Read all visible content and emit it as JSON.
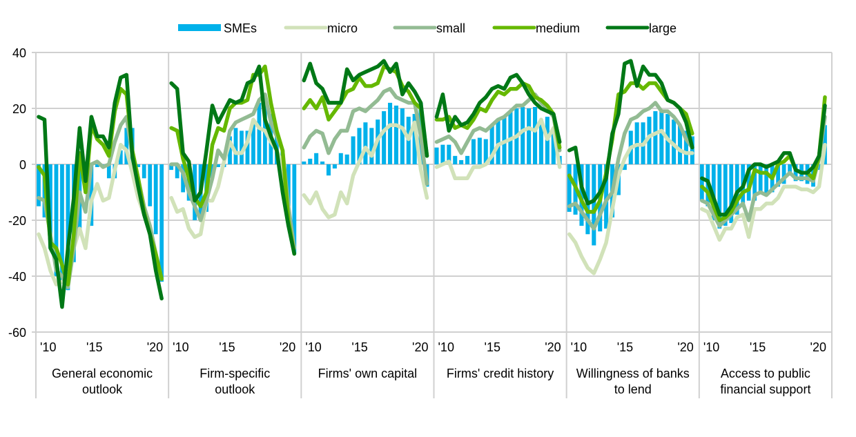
{
  "chart_data": {
    "type": "bar+line",
    "title": "",
    "xlabel": "",
    "ylabel": "",
    "ylim": [
      -60,
      40
    ],
    "yticks": [
      40,
      20,
      0,
      -20,
      -40,
      -60
    ],
    "grid": true,
    "legend_position": "top-center",
    "legend": [
      {
        "name": "SMEs",
        "kind": "bar",
        "color": "#00b1ea"
      },
      {
        "name": "micro",
        "kind": "line",
        "color": "#d1e2b9"
      },
      {
        "name": "small",
        "kind": "line",
        "color": "#93bb93"
      },
      {
        "name": "medium",
        "kind": "line",
        "color": "#65b800"
      },
      {
        "name": "large",
        "kind": "line",
        "color": "#007816"
      }
    ],
    "x_tick_labels": [
      "'10",
      "'15",
      "'20"
    ],
    "panels": [
      {
        "category": [
          "General economic",
          "outlook"
        ],
        "SMEs": [
          -15,
          -19,
          -30,
          -40,
          -42,
          -45,
          -35,
          -24,
          -10,
          -22,
          -1,
          -1,
          -5,
          -5,
          5,
          13,
          13,
          -1,
          -5,
          -15,
          -25,
          -42
        ],
        "micro": [
          -25,
          -30,
          -38,
          -43,
          -42,
          -40,
          -30,
          -23,
          -30,
          -13,
          -7,
          -13,
          -12,
          -2,
          7,
          5,
          -3,
          -12,
          -18,
          -25,
          -35,
          -41
        ],
        "small": [
          -12,
          -13,
          -25,
          -38,
          -40,
          -44,
          -30,
          -10,
          -17,
          0,
          1,
          -1,
          0,
          8,
          14,
          17,
          3,
          -5,
          -15,
          -22,
          -32,
          -41
        ],
        "medium": [
          -1,
          -4,
          -28,
          -30,
          -36,
          -43,
          -25,
          4,
          -10,
          14,
          9,
          7,
          3,
          19,
          27,
          25,
          5,
          -5,
          -17,
          -25,
          -32,
          -41
        ],
        "large": [
          17,
          16,
          -30,
          -34,
          -51,
          -30,
          -12,
          13,
          -6,
          17,
          10,
          10,
          6,
          22,
          31,
          32,
          3,
          -8,
          -18,
          -25,
          -38,
          -48
        ]
      },
      {
        "category": [
          "Firm-specific",
          "outlook"
        ],
        "SMEs": [
          -2,
          -5,
          -10,
          -13,
          -20,
          -20,
          -17,
          -5,
          -1,
          -1,
          10,
          13,
          12,
          12,
          16,
          22,
          21,
          18,
          10,
          5,
          -15,
          -32
        ],
        "micro": [
          -12,
          -17,
          -16,
          -23,
          -26,
          -25,
          -13,
          -13,
          -8,
          1,
          8,
          4,
          4,
          8,
          16,
          13,
          12,
          8,
          5,
          0,
          -20,
          -30
        ],
        "small": [
          0,
          0,
          -3,
          -10,
          -15,
          -20,
          -13,
          -5,
          5,
          2,
          12,
          15,
          16,
          17,
          18,
          23,
          25,
          15,
          10,
          5,
          -15,
          -30
        ],
        "medium": [
          13,
          12,
          2,
          -5,
          -12,
          -15,
          -10,
          7,
          13,
          12,
          20,
          22,
          22,
          23,
          32,
          32,
          35,
          22,
          12,
          5,
          -20,
          -32
        ],
        "large": [
          29,
          27,
          4,
          1,
          -13,
          -10,
          5,
          21,
          15,
          19,
          23,
          22,
          23,
          29,
          30,
          35,
          16,
          10,
          5,
          -10,
          -22,
          -32
        ]
      },
      {
        "category": [
          "Firms' own capital"
        ],
        "SMEs": [
          1,
          2,
          4,
          1,
          -4,
          -1.5,
          4,
          3.5,
          10,
          13,
          15,
          13,
          16,
          19,
          22,
          21,
          20,
          17,
          18,
          22,
          -8
        ],
        "micro": [
          -11,
          -14,
          -10,
          -16,
          -19,
          -18,
          -10,
          -14,
          -4,
          1,
          6,
          3,
          9,
          12,
          14,
          14,
          13,
          9,
          15,
          -2,
          -12
        ],
        "small": [
          6,
          10,
          12,
          11,
          4,
          9,
          12,
          12,
          19,
          20,
          19,
          21,
          23,
          26,
          27,
          24,
          23,
          22,
          22,
          10,
          -7
        ],
        "medium": [
          20,
          23,
          20,
          24,
          16,
          19,
          22,
          26,
          27,
          31,
          28,
          28,
          29,
          35,
          34,
          33,
          28,
          26,
          22,
          20,
          3
        ],
        "large": [
          30,
          36,
          29,
          27,
          22,
          22,
          22,
          34,
          30,
          32,
          33,
          34,
          35,
          37,
          33,
          36,
          25,
          29,
          26,
          22,
          3
        ]
      },
      {
        "category": [
          "Firms' credit history"
        ],
        "SMEs": [
          6,
          7,
          7,
          3,
          1.5,
          3,
          9,
          9.5,
          9,
          14,
          15.5,
          17,
          19,
          20,
          20.5,
          20,
          20.5,
          16,
          17,
          12,
          3
        ],
        "micro": [
          -1,
          0,
          1,
          -5,
          -5,
          -5,
          -1,
          -1,
          0,
          3,
          7,
          8,
          9,
          10,
          12,
          13,
          12,
          16,
          9,
          13,
          -1
        ],
        "small": [
          8,
          9,
          10,
          8,
          4,
          8,
          12,
          13,
          12,
          14,
          16,
          17,
          19,
          21,
          21,
          23,
          25,
          22,
          20,
          17,
          5
        ],
        "medium": [
          16,
          16,
          17,
          13,
          14,
          13,
          16,
          20,
          19,
          23,
          26,
          25,
          27,
          27,
          29,
          28,
          24,
          23,
          21,
          18,
          6
        ],
        "large": [
          17,
          25,
          12,
          17,
          14,
          15,
          18,
          22,
          24,
          27,
          28,
          27,
          31,
          32,
          29,
          25,
          22,
          20,
          19,
          18,
          8
        ]
      },
      {
        "category": [
          "Willingness of   banks",
          "to lend"
        ],
        "SMEs": [
          -17,
          -18,
          -22,
          -25,
          -29,
          -24,
          -23,
          -19,
          -11,
          -2,
          12,
          15,
          15,
          17,
          19,
          19,
          18,
          16,
          14,
          12,
          10
        ],
        "micro": [
          -25,
          -28,
          -33,
          -37,
          -39,
          -34,
          -28,
          -16,
          -4,
          2,
          6,
          7,
          7,
          10,
          11,
          12,
          9,
          7,
          5,
          4,
          4
        ],
        "small": [
          -15,
          -14,
          -17,
          -20,
          -23,
          -18,
          -13,
          -10,
          2,
          11,
          16,
          17,
          19,
          20,
          22,
          19,
          19,
          17,
          14,
          9,
          6
        ],
        "medium": [
          -4,
          -8,
          -13,
          -17,
          -17,
          -13,
          -3,
          9,
          25,
          26,
          29,
          29,
          27,
          29,
          29,
          26,
          23,
          22,
          20,
          18,
          11
        ],
        "large": [
          5,
          6,
          -8,
          -14,
          -13,
          -10,
          -5,
          11,
          18,
          36,
          37,
          28,
          35,
          32,
          32,
          29,
          23,
          22,
          20,
          15,
          6
        ]
      },
      {
        "category": [
          "Access to public",
          "financial support"
        ],
        "SMEs": [
          -13,
          -15,
          -20,
          -23,
          -22,
          -21,
          -18,
          -14,
          -13,
          -13,
          -10,
          -11,
          -10,
          -8,
          -7,
          -4,
          -6,
          -6,
          -7,
          -8,
          -2,
          14
        ],
        "micro": [
          -16,
          -17,
          -22,
          -27,
          -23,
          -23,
          -19,
          -18,
          -26,
          -16,
          -16,
          -14,
          -14,
          -12,
          -8,
          -8,
          -8,
          -9,
          -9,
          -10,
          -8,
          7
        ],
        "small": [
          -13,
          -14,
          -18,
          -22,
          -20,
          -18,
          -16,
          -14,
          -20,
          -11,
          -10,
          -11,
          -9,
          -7,
          -5,
          -3,
          -5,
          -5,
          -5,
          -6,
          2,
          17
        ],
        "medium": [
          -8,
          -10,
          -15,
          -20,
          -19,
          -17,
          -13,
          -10,
          -9,
          -2,
          -3,
          -3,
          -5,
          0,
          1,
          3,
          -2,
          -3,
          -3,
          -5,
          3,
          24
        ],
        "large": [
          -5,
          -6,
          -12,
          -18,
          -18,
          -15,
          -10,
          -8,
          -2,
          0,
          0,
          -1,
          0,
          1,
          4,
          4,
          -2,
          -3,
          -3,
          -1,
          3,
          21
        ]
      }
    ]
  }
}
